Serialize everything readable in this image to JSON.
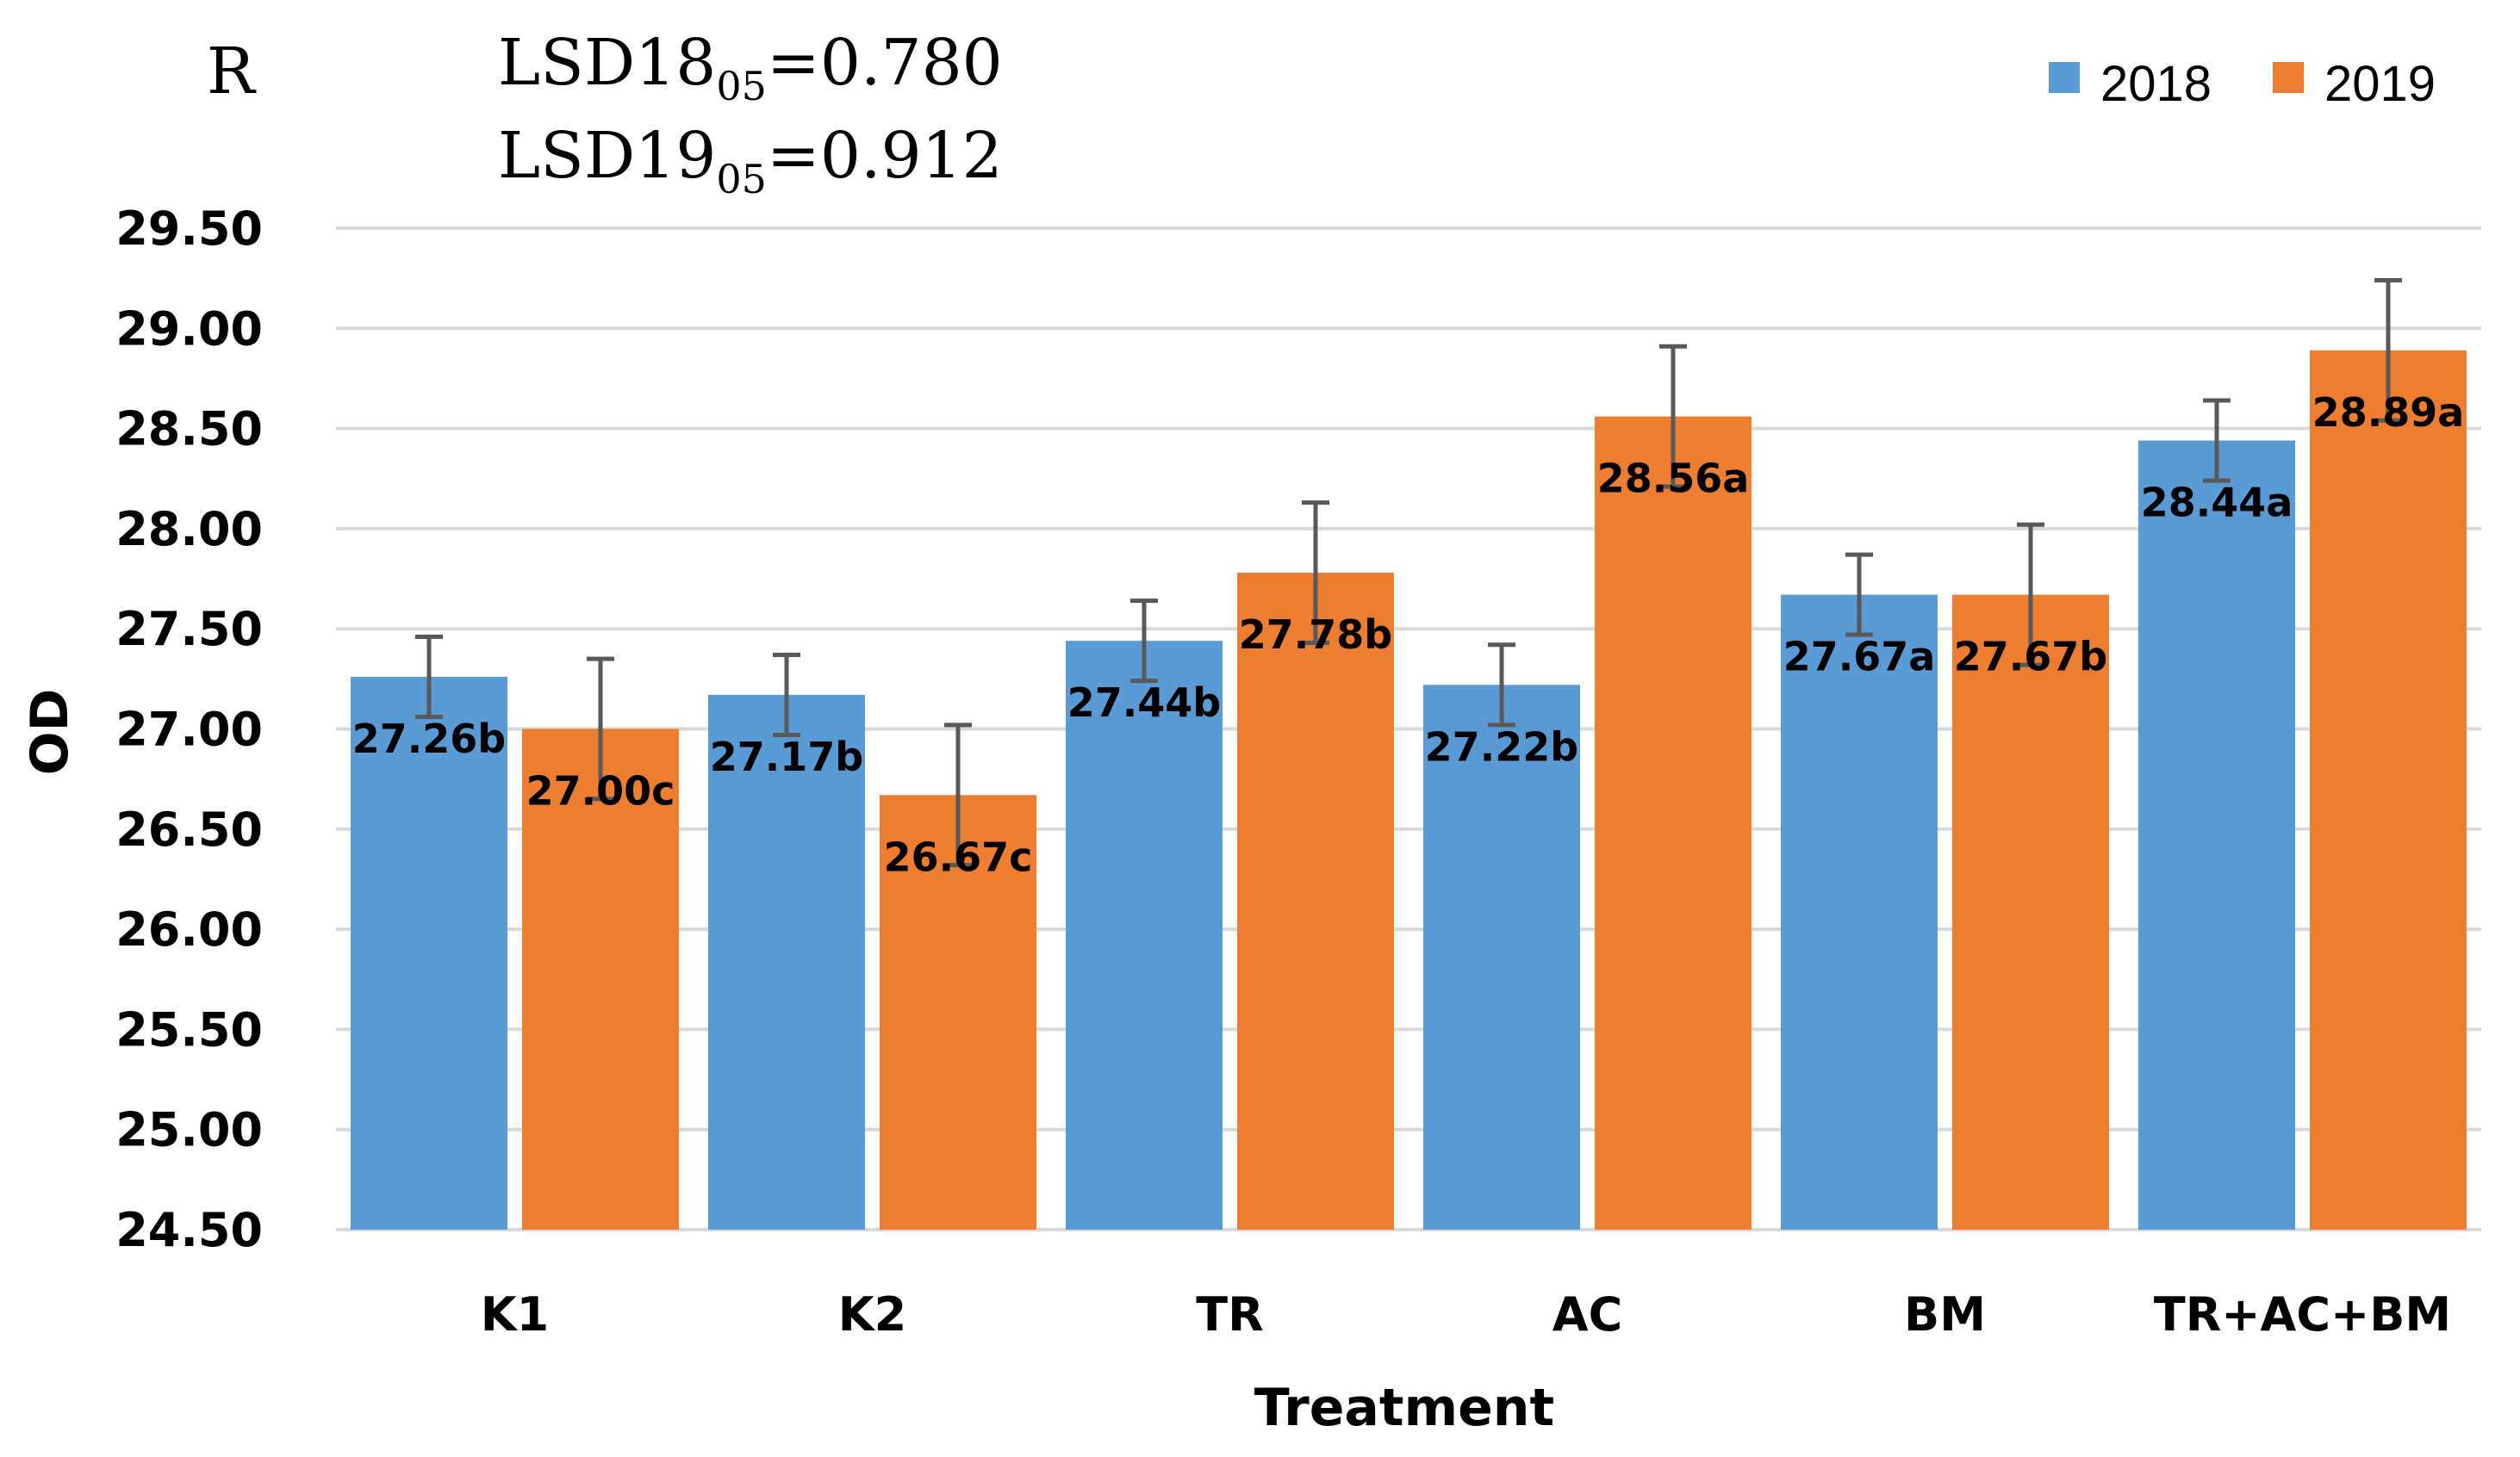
{
  "panel_label": "R",
  "lsd": [
    {
      "prefix": "LSD18",
      "sub": "05",
      "suffix": "=0.780"
    },
    {
      "prefix": "LSD19",
      "sub": "05",
      "suffix": "=0.912"
    }
  ],
  "colors": {
    "series2018": "#5b9bd5",
    "series2019": "#ed7d31",
    "grid": "#d9d9d9",
    "error": "#595959"
  },
  "chart_data": {
    "type": "bar",
    "xlabel": "Treatment",
    "ylabel": "OD",
    "ylim": [
      24.5,
      29.5
    ],
    "yticks": [
      "24.50",
      "25.00",
      "25.50",
      "26.00",
      "26.50",
      "27.00",
      "27.50",
      "28.00",
      "28.50",
      "29.00",
      "29.50"
    ],
    "grid": true,
    "legend_position": "top-right",
    "categories": [
      "K1",
      "K2",
      "TR",
      "AC",
      "BM",
      "TR+AC+BM"
    ],
    "series": [
      {
        "name": "2018",
        "values": [
          27.26,
          27.17,
          27.44,
          27.22,
          27.67,
          28.44
        ],
        "errors": [
          0.2,
          0.2,
          0.2,
          0.2,
          0.2,
          0.2
        ],
        "labels": [
          "27.26b",
          "27.17b",
          "27.44b",
          "27.22b",
          "27.67a",
          "28.44a"
        ]
      },
      {
        "name": "2019",
        "values": [
          27.0,
          26.67,
          27.78,
          28.56,
          27.67,
          28.89
        ],
        "errors": [
          0.35,
          0.35,
          0.35,
          0.35,
          0.35,
          0.35
        ],
        "labels": [
          "27.00c",
          "26.67c",
          "27.78b",
          "28.56a",
          "27.67b",
          "28.89a"
        ]
      }
    ]
  }
}
